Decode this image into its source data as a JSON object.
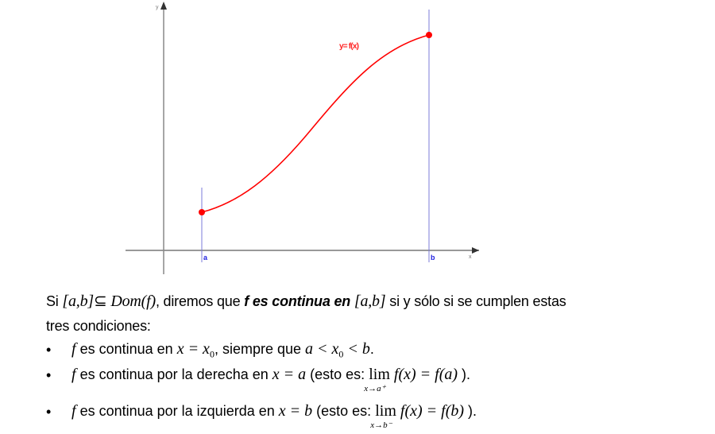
{
  "diagram": {
    "axis_x_label": "x",
    "axis_y_label": "y",
    "curve_label": "y= f(x)",
    "point_a_label": "a",
    "point_b_label": "b",
    "colors": {
      "curve": "#ff0000",
      "bounds": "#7b7bd8",
      "axes": "#808080",
      "bound_labels": "#2020e0"
    }
  },
  "text": {
    "intro_si": "Si",
    "interval": "[a,b]",
    "subset": "⊆",
    "dom": "Dom(f)",
    "intro_mid": ", diremos que",
    "bold_phrase": "f es continua en",
    "interval2": "[a,b]",
    "intro_end": "si y sólo si se cumplen estas",
    "line2": "tres condiciones:",
    "bullets": [
      {
        "f": "f",
        "text": "es continua en",
        "math": "x = x",
        "sub": "0",
        "rest": ", siempre que",
        "math2": "a < x",
        "sub2": "0",
        "math2b": "< b",
        "end": "."
      },
      {
        "f": "f",
        "text": "es continua por la derecha en",
        "math": "x = a",
        "rest": "(esto es:",
        "lim": "lim",
        "lim_sub": "x→a⁺",
        "expr": "f(x) = f(a)",
        "end": ")."
      },
      {
        "f": "f",
        "text": "es continua por la izquierda en",
        "math": "x = b",
        "rest": "(esto es:",
        "lim": "lim",
        "lim_sub": "x→b⁻",
        "expr": "f(x) = f(b)",
        "end": ")."
      }
    ],
    "bullet_symbol": "•"
  }
}
